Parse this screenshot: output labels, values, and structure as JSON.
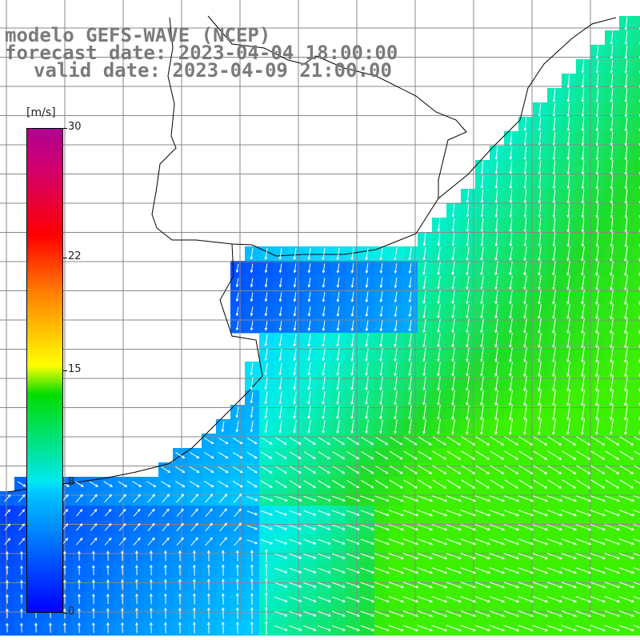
{
  "title": {
    "line1": "modelo GEFS-WAVE (NCEP)",
    "line2": "forecast date: 2023-04-04 18:00:00",
    "line3": "valid date: 2023-04-09 21:00:00"
  },
  "colorbar": {
    "unit": "[m/s]",
    "min": 0,
    "max": 30,
    "ticks": [
      "30",
      "22",
      "15",
      "8",
      "0"
    ],
    "tick_values": [
      30,
      22,
      15,
      8,
      0
    ],
    "colors": [
      "#0000ff",
      "#00c8ff",
      "#00dc00",
      "#ffff00",
      "#ff8000",
      "#ff0000",
      "#b00090"
    ]
  },
  "map": {
    "land_color": "#ffffff",
    "grid_color": "#888888",
    "coastline_color": "#000000",
    "arrow_color": "#ffffff"
  }
}
